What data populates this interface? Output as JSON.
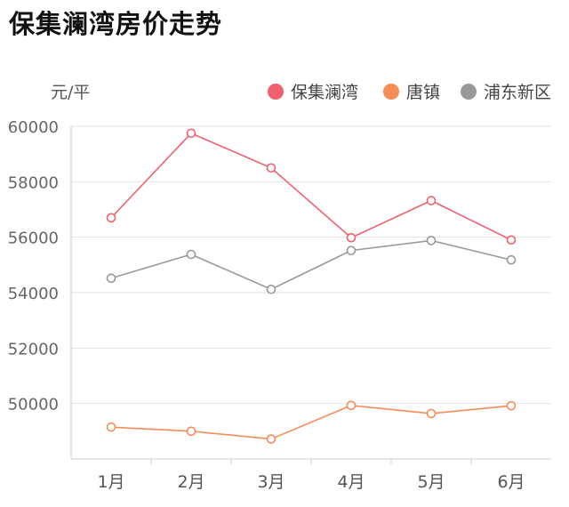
{
  "title": "保集澜湾房价走势",
  "chart_data": {
    "type": "line",
    "title": "保集澜湾房价走势",
    "ylabel": "元/平",
    "categories": [
      "1月",
      "2月",
      "3月",
      "4月",
      "5月",
      "6月"
    ],
    "ylim": [
      48000,
      60000
    ],
    "yticks": [
      50000,
      52000,
      54000,
      56000,
      58000,
      60000
    ],
    "ytick_labels": [
      "50000",
      "52000",
      "54000",
      "56000",
      "58000",
      "60000"
    ],
    "grid": true,
    "legend_position": "top-right",
    "series": [
      {
        "name": "保集澜湾",
        "color": "#f0606e",
        "values": [
          56700,
          59750,
          58500,
          55980,
          57320,
          55900
        ]
      },
      {
        "name": "唐镇",
        "color": "#f58d57",
        "values": [
          49150,
          49000,
          48720,
          49930,
          49640,
          49920
        ]
      },
      {
        "name": "浦东新区",
        "color": "#999999",
        "values": [
          54520,
          55380,
          54120,
          55520,
          55880,
          55180
        ]
      }
    ]
  }
}
